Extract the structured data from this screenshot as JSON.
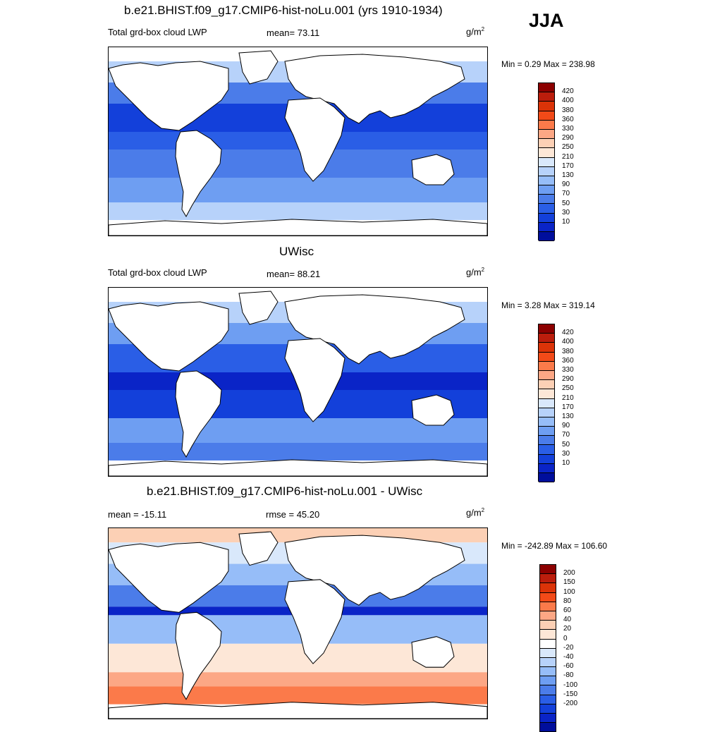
{
  "season": "JJA",
  "panels": [
    {
      "title": "b.e21.BHIST.f09_g17.CMIP6-hist-noLu.001 (yrs 1910-1934)",
      "left": "Total grd-box cloud LWP",
      "center": "mean=  73.11",
      "units_base": "g/m",
      "units_exp": "2",
      "minmax": "Min =   0.29 Max = 238.98",
      "style": "abs1",
      "colorbar": {
        "colors": [
          "#8c0000",
          "#bb1d0c",
          "#db3308",
          "#f24a18",
          "#fb7a4a",
          "#fca785",
          "#fcd0b5",
          "#fde7d7",
          "#d9e8fb",
          "#b7d2fa",
          "#96bdf8",
          "#6e9ef2",
          "#4b7ce9",
          "#2a5ee6",
          "#1340da",
          "#0a24c7",
          "#000e9c"
        ],
        "labels": [
          "420",
          "400",
          "380",
          "360",
          "330",
          "290",
          "250",
          "210",
          "170",
          "130",
          "90",
          "70",
          "50",
          "30",
          "10"
        ]
      }
    },
    {
      "title": "UWisc",
      "left": "Total grd-box cloud LWP",
      "center": "mean=  88.21",
      "units_base": "g/m",
      "units_exp": "2",
      "minmax": "Min =   3.28 Max = 319.14",
      "style": "abs2",
      "colorbar": {
        "colors": [
          "#8c0000",
          "#bb1d0c",
          "#db3308",
          "#f24a18",
          "#fb7a4a",
          "#fca785",
          "#fcd0b5",
          "#fde7d7",
          "#d9e8fb",
          "#b7d2fa",
          "#96bdf8",
          "#6e9ef2",
          "#4b7ce9",
          "#2a5ee6",
          "#1340da",
          "#0a24c7",
          "#000e9c"
        ],
        "labels": [
          "420",
          "400",
          "380",
          "360",
          "330",
          "290",
          "250",
          "210",
          "170",
          "130",
          "90",
          "70",
          "50",
          "30",
          "10"
        ]
      }
    },
    {
      "title": "b.e21.BHIST.f09_g17.CMIP6-hist-noLu.001 - UWisc",
      "left": "mean = -15.11",
      "center": "rmse =  45.20",
      "units_base": "g/m",
      "units_exp": "2",
      "minmax": "Min = -242.89 Max = 106.60",
      "style": "diff",
      "colorbar": {
        "colors": [
          "#8c0000",
          "#bb1d0c",
          "#db3308",
          "#f24a18",
          "#fb7a4a",
          "#fca785",
          "#fcd0b5",
          "#fde7d7",
          "#ffffff",
          "#d9e8fb",
          "#b7d2fa",
          "#96bdf8",
          "#6e9ef2",
          "#4b7ce9",
          "#2a5ee6",
          "#1340da",
          "#0a24c7",
          "#000e9c"
        ],
        "labels": [
          "200",
          "150",
          "100",
          "80",
          "60",
          "40",
          "20",
          "0",
          "-20",
          "-40",
          "-60",
          "-80",
          "-100",
          "-150",
          "-200"
        ]
      }
    }
  ]
}
